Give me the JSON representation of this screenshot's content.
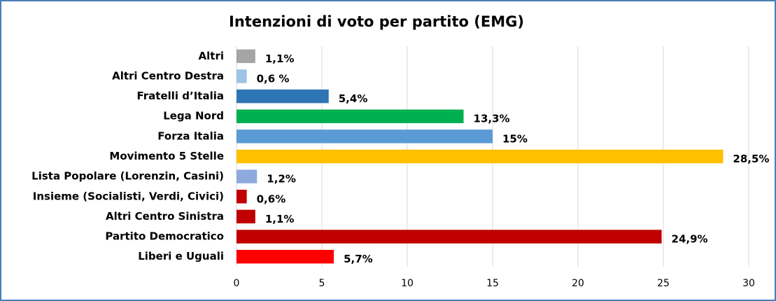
{
  "chart_data": {
    "type": "hbar",
    "title": "Intenzioni di voto per partito (EMG)",
    "categories": [
      "Altri",
      "Altri Centro Destra",
      "Fratelli d’Italia",
      "Lega Nord",
      "Forza Italia",
      "Movimento 5 Stelle",
      "Lista Popolare (Lorenzin, Casini)",
      "Insieme (Socialisti, Verdi, Civici)",
      "Altri Centro Sinistra",
      "Partito Democratico",
      "Liberi e Uguali"
    ],
    "values": [
      1.1,
      0.6,
      5.4,
      13.3,
      15,
      28.5,
      1.2,
      0.6,
      1.1,
      24.9,
      5.7
    ],
    "value_labels": [
      "1,1%",
      "0,6 %",
      "5,4%",
      "13,3%",
      "15%",
      "28,5%",
      "1,2%",
      "0,6%",
      "1,1%",
      "24,9%",
      "5,7%"
    ],
    "colors": [
      "#a5a5a5",
      "#9dc3e6",
      "#2e75b6",
      "#00b050",
      "#5b9bd5",
      "#ffc000",
      "#8faadc",
      "#c00000",
      "#c00000",
      "#c00000",
      "#ff0000"
    ],
    "xlim": [
      0,
      30
    ],
    "xticks": [
      0,
      5,
      10,
      15,
      20,
      25,
      30
    ],
    "grid": true
  }
}
